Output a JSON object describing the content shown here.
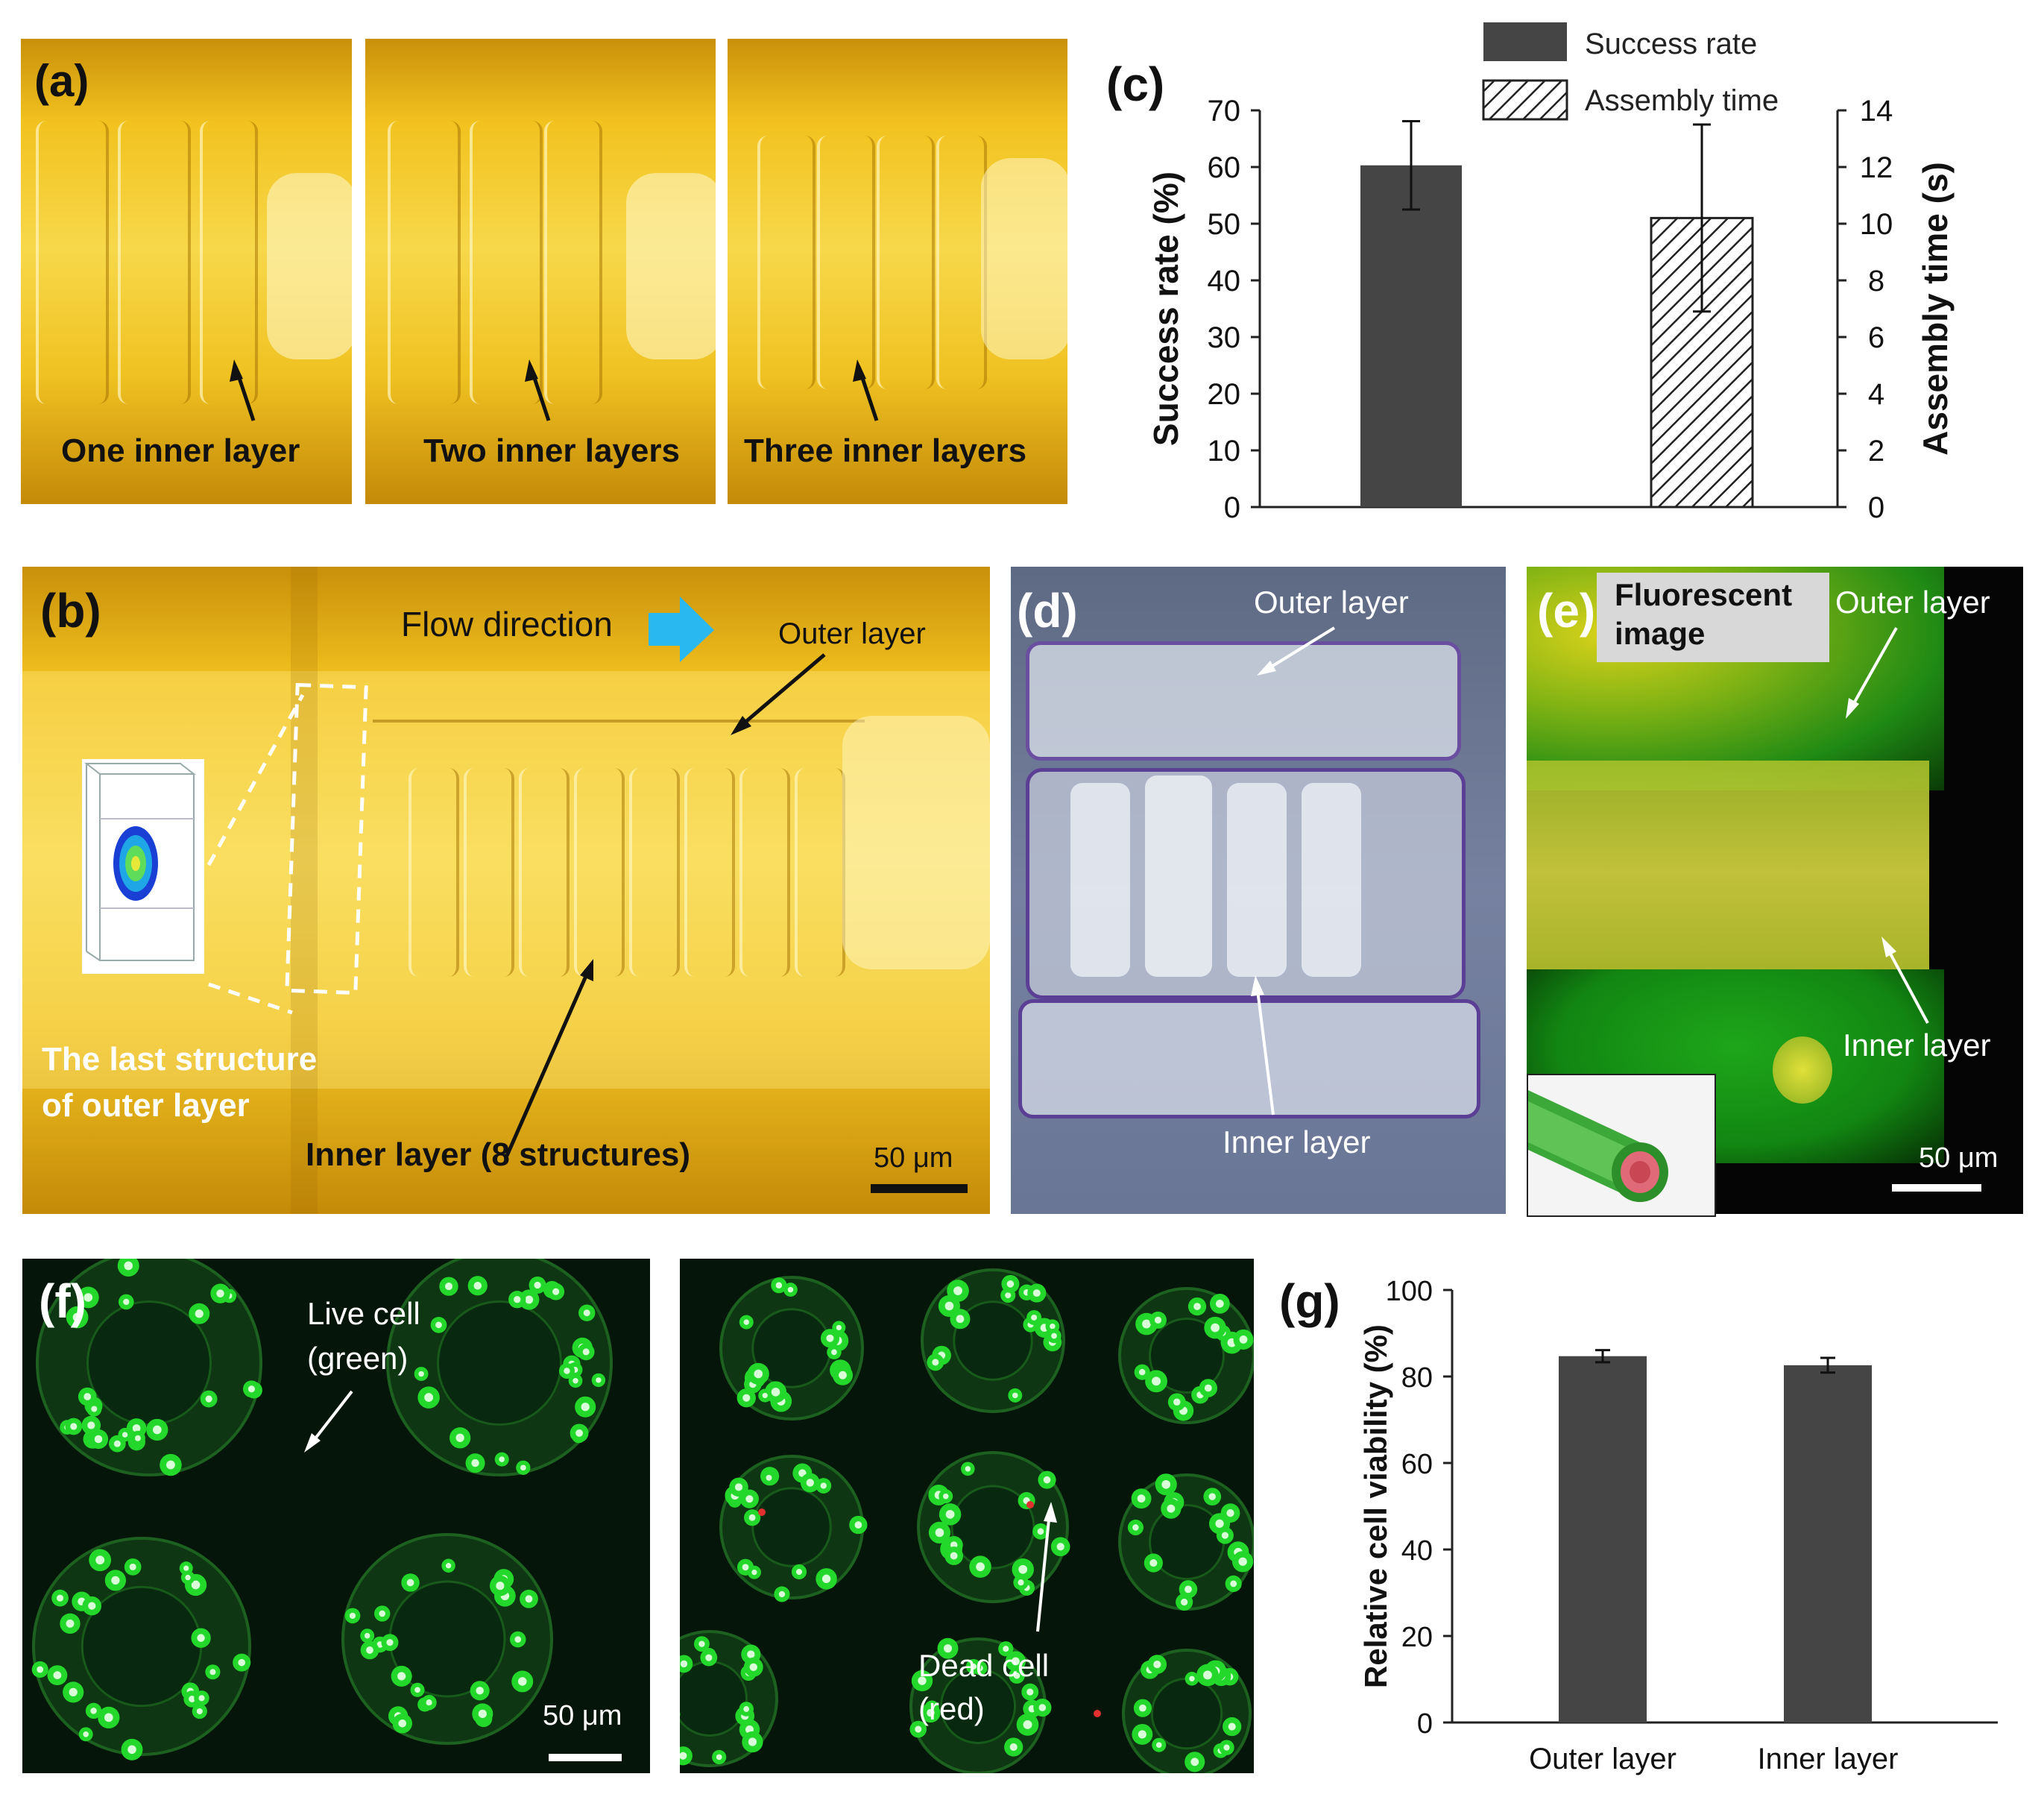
{
  "panel_a": {
    "label": "(a)",
    "captions": [
      "One inner layer",
      "Two inner layers",
      "Three inner layers"
    ]
  },
  "panel_b": {
    "label": "(b)",
    "flow_direction": "Flow direction",
    "outer_layer": "Outer layer",
    "last_structure_line1": "The last structure",
    "last_structure_line2": "of outer layer",
    "inner_layer": "Inner layer (8 structures)",
    "scale": "50 μm"
  },
  "panel_c": {
    "label": "(c)"
  },
  "panel_d": {
    "label": "(d)",
    "outer_layer": "Outer layer",
    "inner_layer": "Inner layer"
  },
  "panel_e": {
    "label": "(e)",
    "badge_line1": "Fluorescent",
    "badge_line2": "image",
    "outer_layer": "Outer layer",
    "inner_layer": "Inner layer",
    "scale": "50 μm"
  },
  "panel_f": {
    "label": "(f)",
    "live_line1": "Live cell",
    "live_line2": "(green)",
    "dead_line1": "Dead cell",
    "dead_line2": "(red)",
    "scale": "50 μm"
  },
  "panel_g": {
    "label": "(g)"
  },
  "chart_data": [
    {
      "type": "bar",
      "panel": "c",
      "legend_placement": "top",
      "series": [
        {
          "name": "Success rate",
          "axis": "left",
          "value": 60.3,
          "error": 7.8,
          "color": "#454545",
          "pattern": "solid"
        },
        {
          "name": "Assembly time",
          "axis": "right",
          "value": 10.2,
          "error": 3.3,
          "color": "#ffffff",
          "pattern": "diagonal-hatch"
        }
      ],
      "ylabel_left": "Success rate (%)",
      "ylim_left": [
        0,
        70
      ],
      "yticks_left": [
        0,
        10,
        20,
        30,
        40,
        50,
        60,
        70
      ],
      "ylabel_right": "Assembly time (s)",
      "ylim_right": [
        0,
        14
      ],
      "yticks_right": [
        0,
        2,
        4,
        6,
        8,
        10,
        12,
        14
      ],
      "grid": false
    },
    {
      "type": "bar",
      "panel": "g",
      "categories": [
        "Outer layer",
        "Inner layer"
      ],
      "values": [
        84.7,
        82.6
      ],
      "errors": [
        1.4,
        1.7
      ],
      "ylabel": "Relative cell viability (%)",
      "ylim": [
        0,
        100
      ],
      "yticks": [
        0,
        20,
        40,
        60,
        80,
        100
      ],
      "bar_color": "#454545",
      "grid": false
    }
  ]
}
